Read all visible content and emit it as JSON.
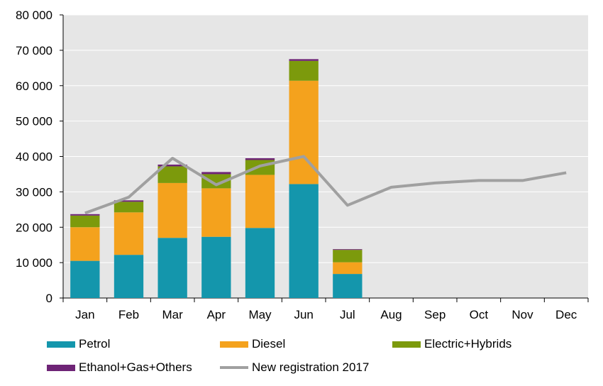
{
  "chart_data": {
    "type": "bar",
    "stacked": true,
    "categories": [
      "Jan",
      "Feb",
      "Mar",
      "Apr",
      "May",
      "Jun",
      "Jul",
      "Aug",
      "Sep",
      "Oct",
      "Nov",
      "Dec"
    ],
    "series": [
      {
        "name": "Petrol",
        "color": "#1496AC",
        "values": [
          10500,
          12200,
          17000,
          17300,
          19800,
          32200,
          6800,
          null,
          null,
          null,
          null,
          null
        ]
      },
      {
        "name": "Diesel",
        "color": "#F4A21D",
        "values": [
          9500,
          12000,
          15500,
          13700,
          15000,
          29200,
          3300,
          null,
          null,
          null,
          null,
          null
        ]
      },
      {
        "name": "Electric+Hybrids",
        "color": "#7C9A0C",
        "values": [
          3300,
          3000,
          4700,
          4000,
          4200,
          5600,
          3500,
          null,
          null,
          null,
          null,
          null
        ]
      },
      {
        "name": "Ethanol+Gas+Others",
        "color": "#6E2476",
        "values": [
          400,
          400,
          500,
          600,
          500,
          500,
          200,
          null,
          null,
          null,
          null,
          null
        ]
      }
    ],
    "line_series": {
      "name": "New registration 2017",
      "color": "#A0A0A0",
      "values": [
        24000,
        28500,
        39500,
        32000,
        37300,
        40000,
        26200,
        31300,
        32500,
        33200,
        33200,
        35400
      ]
    },
    "ylim": [
      0,
      80000
    ],
    "yticks": [
      "0",
      "10 000",
      "20 000",
      "30 000",
      "40 000",
      "50 000",
      "60 000",
      "70 000",
      "80 000"
    ],
    "ytick_values": [
      0,
      10000,
      20000,
      30000,
      40000,
      50000,
      60000,
      70000,
      80000
    ],
    "grid": true,
    "plot_background": "#E6E6E6",
    "legend_position": "bottom"
  }
}
